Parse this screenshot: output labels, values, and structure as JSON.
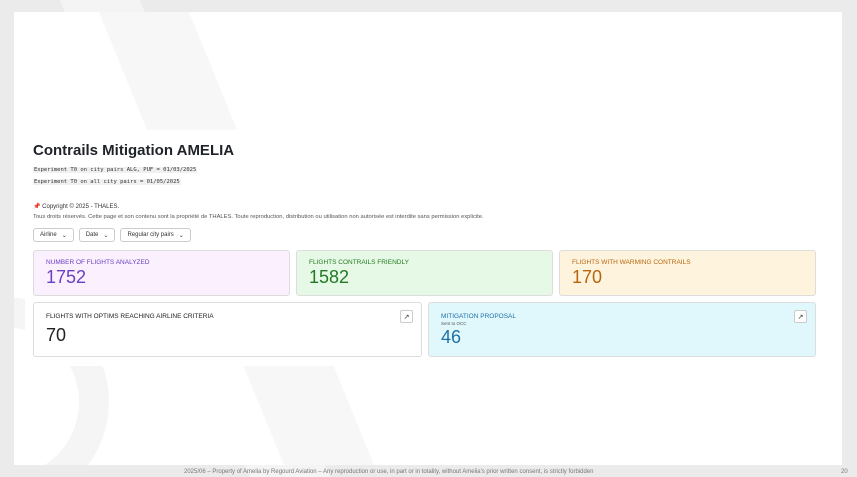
{
  "title": "Contrails Mitigation AMELIA",
  "experiments": [
    "Experiment T0 on city pairs ALG, PUF = 01/03/2025",
    "Experiment T0 on all city pairs = 01/05/2025"
  ],
  "copyright": "Copyright © 2025 - THALES.",
  "rights": "Tous droits réservés. Cette page et son contenu sont la propriété de THALES. Toute reproduction, distribution ou utilisation non autorisée est interdite sans permission explicite.",
  "filters": [
    "Airline",
    "Date",
    "Regular city pairs"
  ],
  "kpis": [
    {
      "label": "Number of flights analyzed",
      "value": "1752",
      "color": "#6b3fc4",
      "bg": "#fbf0fd"
    },
    {
      "label": "Flights contrails friendly",
      "value": "1582",
      "color": "#237a22",
      "bg": "#e6f9e6"
    },
    {
      "label": "Flights with warming contrails",
      "value": "170",
      "color": "#b8650e",
      "bg": "#fef4dd"
    },
    {
      "label": "Flights with optims reaching airline criteria",
      "value": "70",
      "color": "#222222",
      "bg": "#ffffff"
    },
    {
      "label": "Mitigation proposal",
      "sub": "Sent to OCC",
      "value": "46",
      "color": "#1f6fa8",
      "bg": "#e0f8fc"
    }
  ],
  "footer": "2025/06 – Property of Amelia by Regourd Aviation – Any reproduction or use, in part or in totality, without Amelia's prior written consent, is strictly forbidden",
  "page_number": "20"
}
